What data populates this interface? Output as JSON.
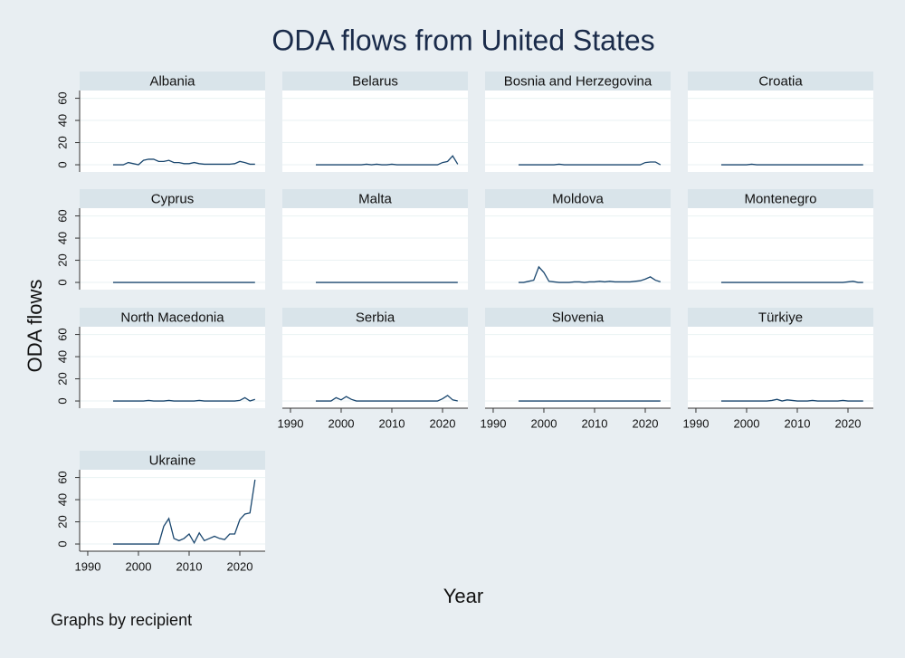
{
  "chart_data": {
    "type": "line",
    "title": "ODA flows from United States",
    "x_label": "Year",
    "y_label": "ODA flows",
    "note": "Graphs by recipient",
    "color": "#1a476f",
    "grid": true,
    "x": [
      1995,
      1996,
      1997,
      1998,
      1999,
      2000,
      2001,
      2002,
      2003,
      2004,
      2005,
      2006,
      2007,
      2008,
      2009,
      2010,
      2011,
      2012,
      2013,
      2014,
      2015,
      2016,
      2017,
      2018,
      2019,
      2020,
      2021,
      2022,
      2023
    ],
    "xlim": [
      1988.4,
      2025
    ],
    "xticks": [
      1990,
      2000,
      2010,
      2020
    ],
    "ylim": [
      -6.5,
      67
    ],
    "yticks": [
      0,
      20,
      40,
      60
    ],
    "series": [
      {
        "name": "Albania",
        "values": [
          0,
          0,
          0,
          2,
          1,
          0,
          4,
          5,
          5,
          3,
          3,
          4,
          2,
          2,
          1,
          1,
          2,
          1,
          0.5,
          0.5,
          0.5,
          0.5,
          0.5,
          0.5,
          1,
          3,
          2,
          0.5,
          0.5
        ]
      },
      {
        "name": "Belarus",
        "values": [
          0,
          0,
          0,
          0,
          0,
          0,
          0,
          0,
          0,
          0,
          0.5,
          0,
          0.5,
          0,
          0,
          0.5,
          0,
          0,
          0,
          0,
          0,
          0,
          0,
          0,
          0,
          2,
          3,
          8,
          0.5
        ]
      },
      {
        "name": "Bosnia and Herzegovina",
        "values": [
          0,
          0,
          0,
          0,
          0,
          0,
          0,
          0,
          0.5,
          0,
          0,
          0,
          0,
          0,
          0,
          0,
          0,
          0,
          0,
          0,
          0,
          0,
          0,
          0,
          0,
          2,
          2.5,
          2.5,
          0
        ]
      },
      {
        "name": "Croatia",
        "values": [
          0,
          0,
          0,
          0,
          0,
          0,
          0.5,
          0,
          0,
          0,
          0,
          0,
          0,
          0,
          0,
          0,
          0,
          0,
          0,
          0,
          0,
          0,
          0,
          0,
          0,
          0,
          0,
          0,
          0
        ]
      },
      {
        "name": "Cyprus",
        "values": [
          0,
          0,
          0,
          0,
          0,
          0,
          0,
          0,
          0,
          0,
          0,
          0,
          0,
          0,
          0,
          0,
          0,
          0,
          0,
          0,
          0,
          0,
          0,
          0,
          0,
          0,
          0,
          0,
          0
        ]
      },
      {
        "name": "Malta",
        "values": [
          0,
          0,
          0,
          0,
          0,
          0,
          0,
          0,
          0,
          0,
          0,
          0,
          0,
          0,
          0,
          0,
          0,
          0,
          0,
          0,
          0,
          0,
          0,
          0,
          0,
          0,
          0,
          0,
          0
        ]
      },
      {
        "name": "Moldova",
        "values": [
          0,
          0,
          1,
          2,
          14,
          9,
          1,
          0.5,
          0,
          0,
          0,
          0.5,
          0.5,
          0,
          0.5,
          0.5,
          1,
          0.5,
          1,
          0.5,
          0.5,
          0.5,
          0.5,
          1,
          1.5,
          3,
          5,
          2,
          0.5
        ]
      },
      {
        "name": "Montenegro",
        "values": [
          0,
          0,
          0,
          0,
          0,
          0,
          0,
          0,
          0,
          0,
          0,
          0,
          0,
          0,
          0,
          0,
          0,
          0,
          0,
          0,
          0,
          0,
          0,
          0,
          0,
          0.5,
          1,
          0,
          0
        ]
      },
      {
        "name": "North Macedonia",
        "values": [
          0,
          0,
          0,
          0,
          0,
          0,
          0,
          0.5,
          0,
          0,
          0,
          0.5,
          0,
          0,
          0,
          0,
          0,
          0.5,
          0,
          0,
          0,
          0,
          0,
          0,
          0,
          0.5,
          3,
          0,
          1.5
        ]
      },
      {
        "name": "Serbia",
        "values": [
          0,
          0,
          0,
          0,
          3,
          1,
          4,
          1.5,
          0,
          0,
          0,
          0,
          0,
          0,
          0,
          0,
          0,
          0,
          0,
          0,
          0,
          0,
          0,
          0,
          0,
          2,
          5,
          1,
          0
        ]
      },
      {
        "name": "Slovenia",
        "values": [
          0,
          0,
          0,
          0,
          0,
          0,
          0,
          0,
          0,
          0,
          0,
          0,
          0,
          0,
          0,
          0,
          0,
          0,
          0,
          0,
          0,
          0,
          0,
          0,
          0,
          0,
          0,
          0,
          0
        ]
      },
      {
        "name": "Türkiye",
        "values": [
          0,
          0,
          0,
          0,
          0,
          0,
          0,
          0,
          0,
          0,
          0.5,
          1.5,
          0,
          1,
          0.5,
          0,
          0,
          0,
          0.5,
          0,
          0,
          0,
          0,
          0,
          0.5,
          0,
          0,
          0,
          0
        ]
      },
      {
        "name": "Ukraine",
        "values": [
          0,
          0,
          0,
          0,
          0,
          0,
          0,
          0,
          0,
          0,
          16,
          23,
          5,
          3,
          5,
          9,
          1,
          10,
          3,
          5,
          7,
          5,
          4,
          9,
          9,
          22,
          27,
          28,
          58
        ]
      }
    ]
  }
}
